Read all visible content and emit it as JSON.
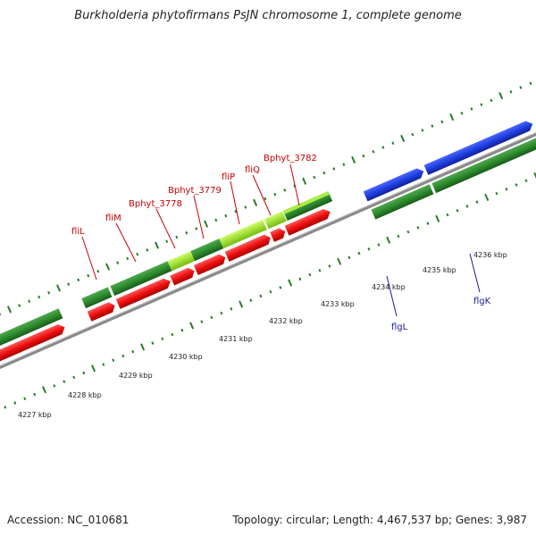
{
  "title": "Burkholderia phytofirmans PsJN chromosome 1, complete genome",
  "footer": {
    "accession": "Accession: NC_010681",
    "topology": "Topology: circular; Length: 4,467,537 bp; Genes: 3,987"
  },
  "kbp_ticks": [
    {
      "pos": 4227,
      "label": "4227 kbp"
    },
    {
      "pos": 4228,
      "label": "4228 kbp"
    },
    {
      "pos": 4229,
      "label": "4229 kbp"
    },
    {
      "pos": 4230,
      "label": "4230 kbp"
    },
    {
      "pos": 4231,
      "label": "4231 kbp"
    },
    {
      "pos": 4232,
      "label": "4232 kbp"
    },
    {
      "pos": 4233,
      "label": "4233 kbp"
    },
    {
      "pos": 4234,
      "label": "4234 kbp"
    },
    {
      "pos": 4235,
      "label": "4235 kbp"
    },
    {
      "pos": 4236,
      "label": "4236 kbp"
    }
  ],
  "gene_labels": [
    {
      "text": "fliL",
      "color": "#cc0000",
      "side": "above"
    },
    {
      "text": "fliM",
      "color": "#cc0000",
      "side": "above"
    },
    {
      "text": "Bphyt_3778",
      "color": "#cc0000",
      "side": "above"
    },
    {
      "text": "Bphyt_3779",
      "color": "#cc0000",
      "side": "above"
    },
    {
      "text": "fliP",
      "color": "#cc0000",
      "side": "above"
    },
    {
      "text": "fliQ",
      "color": "#cc0000",
      "side": "above"
    },
    {
      "text": "Bphyt_3782",
      "color": "#cc0000",
      "side": "above"
    },
    {
      "text": "flgL",
      "color": "#1a1a99",
      "side": "below"
    },
    {
      "text": "flgK",
      "color": "#1a1a99",
      "side": "below"
    }
  ],
  "colors": {
    "gene_forward": "#1f3fe0",
    "gene_reverse": "#ee1111",
    "cds_green": "#2e8b2e",
    "cds_light": "#99dd22",
    "backbone": "#888888",
    "ticks": "#2a7a2a"
  }
}
